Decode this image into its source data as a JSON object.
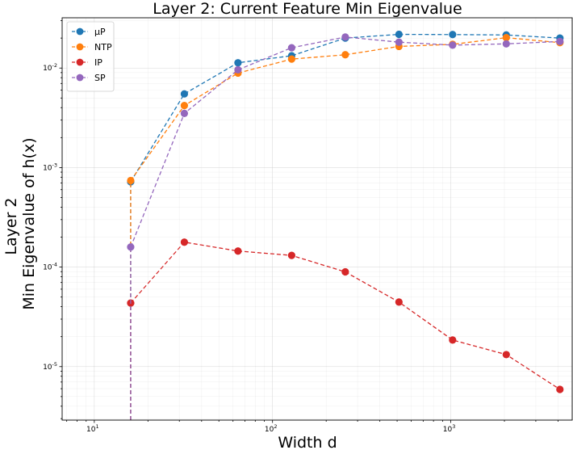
{
  "chart_data": {
    "type": "line",
    "title": "Layer 2: Current Feature Min Eigenvalue",
    "xlabel": "Width d",
    "ylabel_lines": [
      "Layer 2",
      "Min Eigenvalue of h(x)"
    ],
    "xscale": "log",
    "yscale": "log",
    "xlim": [
      6.6,
      4800
    ],
    "ylim": [
      2.9e-06,
      0.032
    ],
    "x": [
      16,
      32,
      64,
      128,
      256,
      512,
      1024,
      2048,
      4096
    ],
    "x_ticks": [
      {
        "base": "10",
        "exp": "1"
      },
      {
        "base": "10",
        "exp": "2"
      },
      {
        "base": "10",
        "exp": "3"
      }
    ],
    "y_ticks": [
      {
        "base": "10",
        "exp": "-5"
      },
      {
        "base": "10",
        "exp": "-4"
      },
      {
        "base": "10",
        "exp": "-3"
      },
      {
        "base": "10",
        "exp": "-2"
      }
    ],
    "grid": true,
    "legend_position": "top-left",
    "series": [
      {
        "name": "μP",
        "color": "#1f77b4",
        "values": [
          0.00072,
          0.0055,
          0.0113,
          0.0133,
          0.02,
          0.0218,
          0.0217,
          0.0215,
          0.02
        ]
      },
      {
        "name": "NTP",
        "color": "#ff7f0e",
        "values": [
          0.00074,
          0.0042,
          0.0089,
          0.0123,
          0.0136,
          0.0165,
          0.0173,
          0.0202,
          0.018
        ]
      },
      {
        "name": "IP",
        "color": "#d62728",
        "values": [
          4.35e-05,
          0.000178,
          0.000145,
          0.000131,
          8.95e-05,
          4.45e-05,
          1.85e-05,
          1.32e-05,
          5.9e-06
        ]
      },
      {
        "name": "SP",
        "color": "#9467bd",
        "values": [
          0.000159,
          0.0035,
          0.0096,
          0.016,
          0.0205,
          0.0182,
          0.017,
          0.0175,
          0.0185
        ]
      }
    ]
  }
}
